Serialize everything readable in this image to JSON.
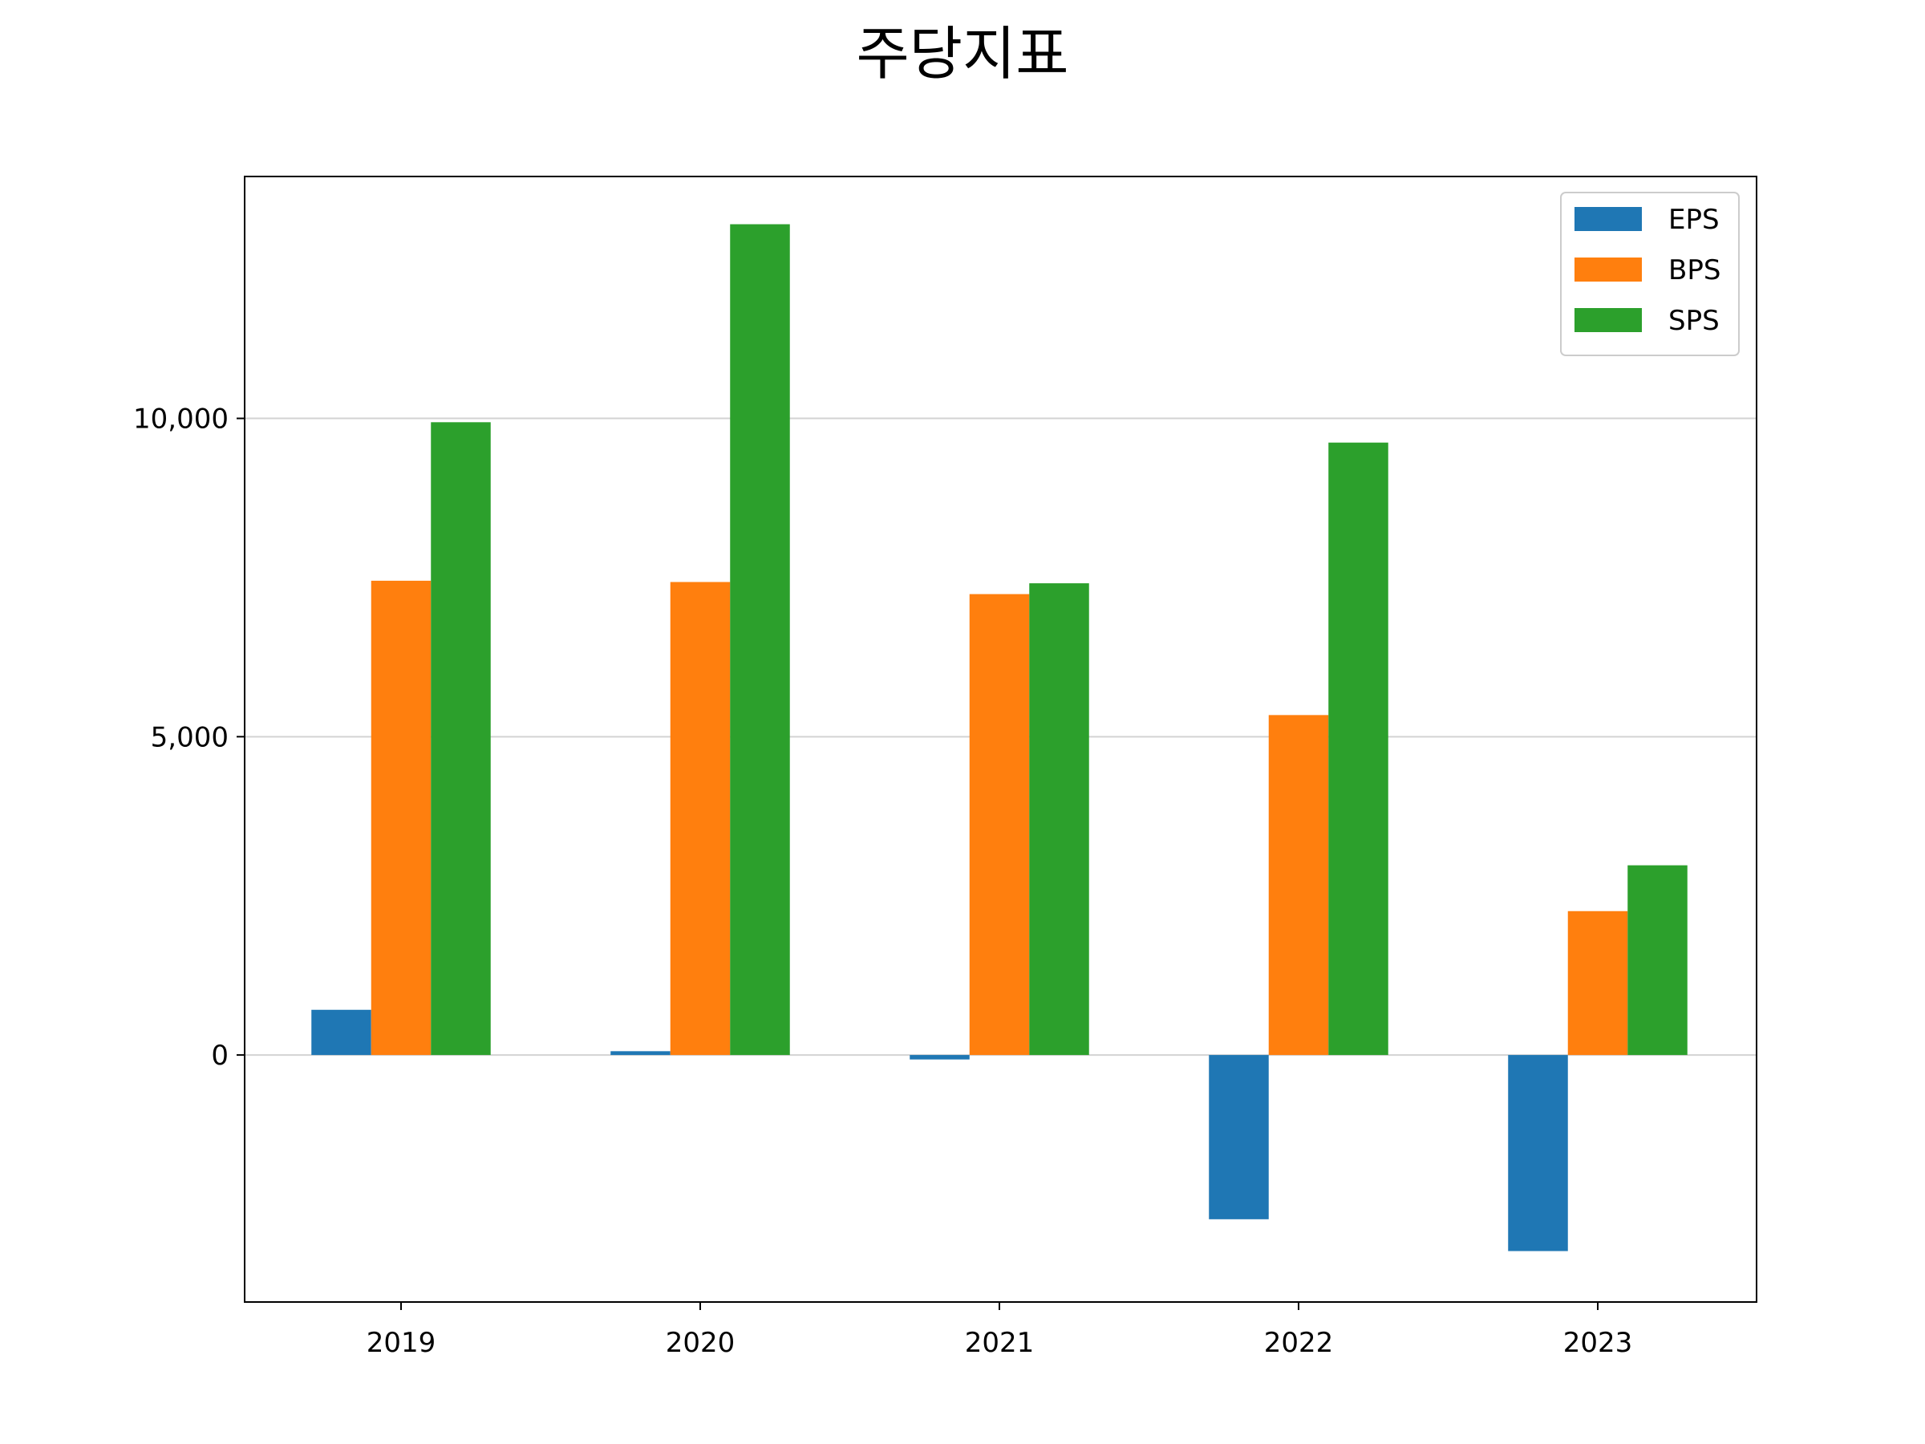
{
  "chart_data": {
    "type": "bar",
    "title": "주당지표",
    "xlabel": "",
    "ylabel": "",
    "categories": [
      "2019",
      "2020",
      "2021",
      "2022",
      "2023"
    ],
    "series": [
      {
        "name": "EPS",
        "color": "#1f77b4",
        "values": [
          710,
          60,
          -70,
          -2580,
          -3080
        ]
      },
      {
        "name": "BPS",
        "color": "#ff7f0e",
        "values": [
          7450,
          7430,
          7240,
          5340,
          2260
        ]
      },
      {
        "name": "SPS",
        "color": "#2ca02c",
        "values": [
          9940,
          13050,
          7410,
          9620,
          2980
        ]
      }
    ],
    "ylim": [
      -3880,
      13800
    ],
    "yticks": [
      0,
      5000,
      10000
    ],
    "ytick_labels": [
      "0",
      "5,000",
      "10,000"
    ],
    "grid": "horizontal",
    "legend": "top-right"
  }
}
